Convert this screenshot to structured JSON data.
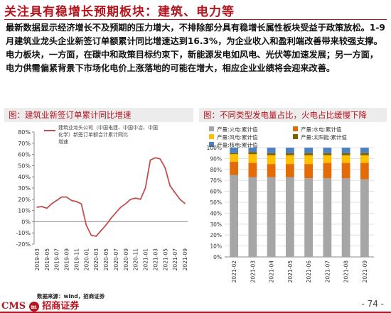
{
  "page": {
    "title": "关注具有稳增长预期板块：建筑、电力等",
    "paragraph": "最新数据显示经济增长不及预期的压力增大，不排除部分具有稳增长属性板块受益于政策放松。1-9月建筑业龙头企业新签订单额累计同比增速达到16.3%，为企业收入和盈利端改善带来较强支撑。电力板块，一方面，在碳中和政策目标约束下，新能源发电如风电、光伏等加速发展；另一方面，电力供需偏紧背景下市场化电价上涨落地的可能在增大，相应企业业绩将会迎来改善。",
    "source": "数据来源：wind，招商证券",
    "logo_text": "CMS",
    "logo_cn": "招商证券",
    "page_number": "- 74 -"
  },
  "left_panel": {
    "title": "图：建筑业新签订单累计同比增速"
  },
  "right_panel": {
    "title": "图：不同类型发电量占比，火电占比缓慢下降"
  },
  "chart_data": [
    {
      "type": "line",
      "title": "图：建筑业新签订单累计同比增速",
      "series": [
        {
          "name": "建筑业龙头公司（中国电建、中国中冶、中国化学）新签订单额合计累计同比增速",
          "color": "#c0504d",
          "x": [
            "2019-03",
            "2019-04",
            "2019-05",
            "2019-06",
            "2019-07",
            "2019-08",
            "2019-09",
            "2019-10",
            "2019-11",
            "2019-12",
            "2020-01",
            "2020-02",
            "2020-03",
            "2020-04",
            "2020-05",
            "2020-06",
            "2020-07",
            "2020-08",
            "2020-09",
            "2020-10",
            "2020-11",
            "2020-12",
            "2021-01",
            "2021-02",
            "2021-03",
            "2021-04",
            "2021-05",
            "2021-06",
            "2021-07",
            "2021-08",
            "2021-09"
          ],
          "values": [
            13,
            13.5,
            12,
            16,
            19,
            22,
            22,
            19,
            18,
            16,
            -3,
            -12,
            -13,
            -8,
            -3,
            3,
            8,
            13,
            16,
            20,
            21,
            20,
            30,
            55,
            57,
            56,
            48,
            32,
            26,
            20,
            16.3
          ]
        }
      ],
      "x_tick_labels": [
        "2019-03",
        "2019-05",
        "2019-07",
        "2019-09",
        "2019-11",
        "2020-01",
        "2020-03",
        "2020-05",
        "2020-07",
        "2020-09",
        "2020-11",
        "2021-01",
        "2021-03",
        "2021-05",
        "2021-07",
        "2021-09"
      ],
      "y_tick_labels": [
        "-20%",
        "-10%",
        "0%",
        "10%",
        "20%",
        "30%",
        "40%",
        "50%",
        "60%",
        "70%",
        "80%"
      ],
      "ylim": [
        -20,
        80
      ],
      "legend": "top-left"
    },
    {
      "type": "bar",
      "stacked": true,
      "title": "图：不同类型发电量占比，火电占比缓慢下降",
      "categories": [
        "2021-02",
        "2021-03",
        "2021-04",
        "2021-05",
        "2021-06",
        "2021-07",
        "2021-08",
        "2021-09"
      ],
      "series": [
        {
          "name": "产量:火电:累计值",
          "color": "#a6a6a6",
          "values": [
            75,
            73,
            73,
            73,
            72,
            72,
            72,
            71
          ]
        },
        {
          "name": "产量:水电:累计值",
          "color": "#e36c09",
          "values": [
            12,
            13,
            12,
            12,
            13,
            14,
            14,
            15
          ]
        },
        {
          "name": "产量:风电:累计值",
          "color": "#ffc000",
          "values": [
            7,
            8,
            8,
            8,
            8,
            7,
            7,
            7
          ]
        },
        {
          "name": "产量:太阳能:累计值",
          "color": "#7f6000",
          "values": [
            1,
            2,
            2,
            2,
            2,
            2,
            2,
            2
          ]
        },
        {
          "name": "产量:核电:累计值",
          "color": "#4f81bd",
          "values": [
            5,
            4,
            5,
            5,
            5,
            5,
            5,
            5
          ]
        }
      ],
      "y_tick_labels": [
        "0%",
        "10%",
        "20%",
        "30%",
        "40%",
        "50%",
        "60%",
        "70%",
        "80%",
        "90%",
        "100%"
      ],
      "ylim": [
        0,
        100
      ],
      "legend": "top"
    }
  ]
}
